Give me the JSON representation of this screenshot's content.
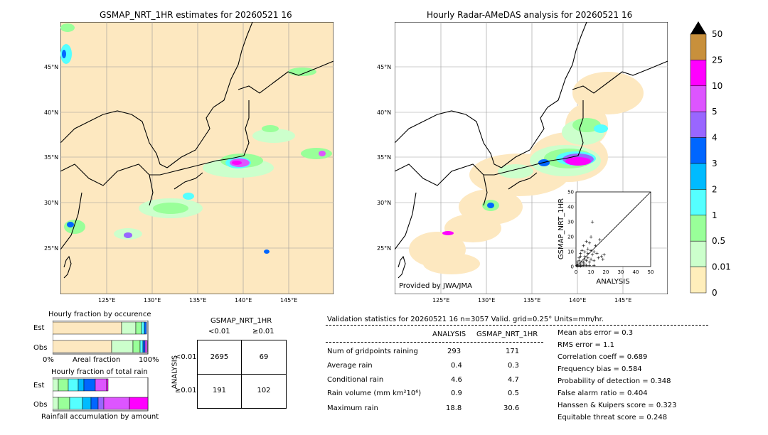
{
  "map_left": {
    "title": "GSMAP_NRT_1HR estimates for 20260521 16",
    "lat_labels": [
      "45°N",
      "40°N",
      "35°N",
      "30°N",
      "25°N"
    ],
    "lon_labels": [
      "125°E",
      "130°E",
      "135°E",
      "140°E",
      "145°E"
    ]
  },
  "map_right": {
    "title": "Hourly Radar-AMeDAS analysis for 20260521 16",
    "lat_labels": [
      "45°N",
      "40°N",
      "35°N",
      "30°N",
      "25°N"
    ],
    "lon_labels": [
      "125°E",
      "130°E",
      "135°E",
      "140°E",
      "145°E"
    ],
    "credit": "Provided by JWA/JMA"
  },
  "colorbar": {
    "labels": [
      "50",
      "25",
      "10",
      "5",
      "4",
      "3",
      "2",
      "1",
      "0.5",
      "0.01",
      "0"
    ],
    "colors": [
      "#c8903c",
      "#ff00ff",
      "#dd55ff",
      "#9966ff",
      "#0066ff",
      "#00bbff",
      "#55ffff",
      "#99ff99",
      "#ccffcc",
      "#ffeebb"
    ]
  },
  "fraction_occurrence": {
    "title": "Hourly fraction by occurence",
    "row_est": "Est",
    "row_obs": "Obs",
    "axis_left": "0%",
    "axis_mid": "Areal fraction",
    "axis_right": "100%"
  },
  "fraction_total": {
    "title": "Hourly fraction of total rain",
    "row_est": "Est",
    "row_obs": "Obs",
    "footer": "Rainfall accumulation by amount"
  },
  "contingency": {
    "header": "GSMAP_NRT_1HR",
    "col1": "<0.01",
    "col2": "≥0.01",
    "side": "ANALYSIS",
    "row1": "<0.01",
    "row2": "≥0.01",
    "values": [
      "2695",
      "69",
      "191",
      "102"
    ]
  },
  "validation": {
    "header": "Validation statistics for 20260521 16  n=3057 Valid. grid=0.25° Units=mm/hr.",
    "col_analysis": "ANALYSIS",
    "col_gsmap": "GSMAP_NRT_1HR",
    "rows": [
      {
        "label": "Num of gridpoints raining",
        "a": "293",
        "g": "171"
      },
      {
        "label": "Average rain",
        "a": "0.4",
        "g": "0.3"
      },
      {
        "label": "Conditional rain",
        "a": "4.6",
        "g": "4.7"
      },
      {
        "label": "Rain volume (mm km²10⁶)",
        "a": "0.9",
        "g": "0.5"
      },
      {
        "label": "Maximum rain",
        "a": "18.8",
        "g": "30.6"
      }
    ],
    "scores": [
      "Mean abs error =    0.3",
      "RMS error =    1.1",
      "Correlation coeff =  0.689",
      "Frequency bias =  0.584",
      "Probability of detection =  0.348",
      "False alarm ratio =  0.404",
      "Hanssen & Kuipers score =  0.323",
      "Equitable threat score =  0.248"
    ]
  },
  "chart_data": {
    "type": "scatter",
    "xlabel": "ANALYSIS",
    "ylabel": "GSMAP_NRT_1HR",
    "xlim": [
      0,
      50
    ],
    "ylim": [
      0,
      50
    ],
    "ticks": [
      "0",
      "10",
      "20",
      "30",
      "40",
      "50"
    ],
    "points": [
      [
        1,
        0.5
      ],
      [
        2,
        1
      ],
      [
        3,
        2
      ],
      [
        4,
        1
      ],
      [
        5,
        3
      ],
      [
        6,
        2
      ],
      [
        7,
        4
      ],
      [
        8,
        6
      ],
      [
        9,
        3
      ],
      [
        10,
        5
      ],
      [
        11,
        8
      ],
      [
        12,
        4
      ],
      [
        14,
        9
      ],
      [
        15,
        6
      ],
      [
        17,
        7
      ],
      [
        18,
        5
      ],
      [
        2,
        6
      ],
      [
        3,
        9
      ],
      [
        4,
        11
      ],
      [
        5,
        14
      ],
      [
        6,
        10
      ],
      [
        7,
        17
      ],
      [
        8,
        12
      ],
      [
        9,
        16
      ],
      [
        10,
        20
      ],
      [
        11,
        30
      ],
      [
        12,
        10
      ],
      [
        13,
        14
      ],
      [
        16,
        18
      ],
      [
        4,
        3
      ],
      [
        6,
        7
      ],
      [
        8,
        9
      ],
      [
        1,
        3
      ],
      [
        2,
        4
      ],
      [
        5,
        1
      ],
      [
        7,
        1
      ],
      [
        9,
        1
      ],
      [
        12,
        1
      ],
      [
        3,
        0.5
      ],
      [
        1,
        2
      ],
      [
        0.5,
        1
      ],
      [
        18.8,
        8
      ],
      [
        6,
        5
      ],
      [
        10,
        11
      ],
      [
        3,
        7
      ]
    ]
  }
}
